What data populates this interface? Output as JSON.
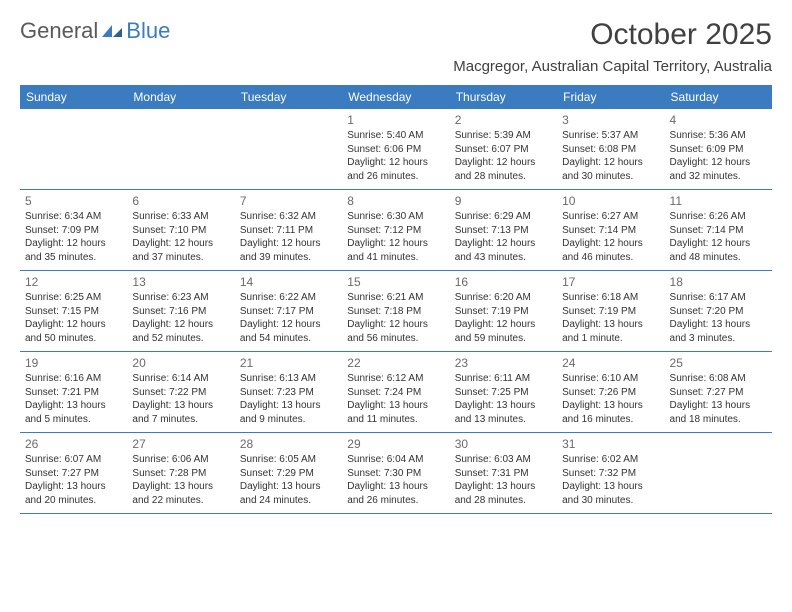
{
  "logo": {
    "text1": "General",
    "text2": "Blue"
  },
  "colors": {
    "brand": "#3b7bbf",
    "header_bg": "#3b7bbf",
    "header_text": "#ffffff",
    "week_border": "#3b7bbf",
    "logo_gray": "#5a5a5a",
    "title_color": "#404040",
    "body_text": "#333333",
    "daynum_color": "#6a6a6a",
    "background": "#ffffff"
  },
  "typography": {
    "title_fontsize": 30,
    "subtitle_fontsize": 15,
    "header_fontsize": 12,
    "daynum_fontsize": 12,
    "daytext_fontsize": 10,
    "logo_fontsize": 22
  },
  "title": "October 2025",
  "subtitle": "Macgregor, Australian Capital Territory, Australia",
  "weekdays": [
    "Sunday",
    "Monday",
    "Tuesday",
    "Wednesday",
    "Thursday",
    "Friday",
    "Saturday"
  ],
  "weeks": [
    [
      {
        "day": "",
        "lines": [
          "",
          "",
          "",
          ""
        ]
      },
      {
        "day": "",
        "lines": [
          "",
          "",
          "",
          ""
        ]
      },
      {
        "day": "",
        "lines": [
          "",
          "",
          "",
          ""
        ]
      },
      {
        "day": "1",
        "lines": [
          "Sunrise: 5:40 AM",
          "Sunset: 6:06 PM",
          "Daylight: 12 hours",
          "and 26 minutes."
        ]
      },
      {
        "day": "2",
        "lines": [
          "Sunrise: 5:39 AM",
          "Sunset: 6:07 PM",
          "Daylight: 12 hours",
          "and 28 minutes."
        ]
      },
      {
        "day": "3",
        "lines": [
          "Sunrise: 5:37 AM",
          "Sunset: 6:08 PM",
          "Daylight: 12 hours",
          "and 30 minutes."
        ]
      },
      {
        "day": "4",
        "lines": [
          "Sunrise: 5:36 AM",
          "Sunset: 6:09 PM",
          "Daylight: 12 hours",
          "and 32 minutes."
        ]
      }
    ],
    [
      {
        "day": "5",
        "lines": [
          "Sunrise: 6:34 AM",
          "Sunset: 7:09 PM",
          "Daylight: 12 hours",
          "and 35 minutes."
        ]
      },
      {
        "day": "6",
        "lines": [
          "Sunrise: 6:33 AM",
          "Sunset: 7:10 PM",
          "Daylight: 12 hours",
          "and 37 minutes."
        ]
      },
      {
        "day": "7",
        "lines": [
          "Sunrise: 6:32 AM",
          "Sunset: 7:11 PM",
          "Daylight: 12 hours",
          "and 39 minutes."
        ]
      },
      {
        "day": "8",
        "lines": [
          "Sunrise: 6:30 AM",
          "Sunset: 7:12 PM",
          "Daylight: 12 hours",
          "and 41 minutes."
        ]
      },
      {
        "day": "9",
        "lines": [
          "Sunrise: 6:29 AM",
          "Sunset: 7:13 PM",
          "Daylight: 12 hours",
          "and 43 minutes."
        ]
      },
      {
        "day": "10",
        "lines": [
          "Sunrise: 6:27 AM",
          "Sunset: 7:14 PM",
          "Daylight: 12 hours",
          "and 46 minutes."
        ]
      },
      {
        "day": "11",
        "lines": [
          "Sunrise: 6:26 AM",
          "Sunset: 7:14 PM",
          "Daylight: 12 hours",
          "and 48 minutes."
        ]
      }
    ],
    [
      {
        "day": "12",
        "lines": [
          "Sunrise: 6:25 AM",
          "Sunset: 7:15 PM",
          "Daylight: 12 hours",
          "and 50 minutes."
        ]
      },
      {
        "day": "13",
        "lines": [
          "Sunrise: 6:23 AM",
          "Sunset: 7:16 PM",
          "Daylight: 12 hours",
          "and 52 minutes."
        ]
      },
      {
        "day": "14",
        "lines": [
          "Sunrise: 6:22 AM",
          "Sunset: 7:17 PM",
          "Daylight: 12 hours",
          "and 54 minutes."
        ]
      },
      {
        "day": "15",
        "lines": [
          "Sunrise: 6:21 AM",
          "Sunset: 7:18 PM",
          "Daylight: 12 hours",
          "and 56 minutes."
        ]
      },
      {
        "day": "16",
        "lines": [
          "Sunrise: 6:20 AM",
          "Sunset: 7:19 PM",
          "Daylight: 12 hours",
          "and 59 minutes."
        ]
      },
      {
        "day": "17",
        "lines": [
          "Sunrise: 6:18 AM",
          "Sunset: 7:19 PM",
          "Daylight: 13 hours",
          "and 1 minute."
        ]
      },
      {
        "day": "18",
        "lines": [
          "Sunrise: 6:17 AM",
          "Sunset: 7:20 PM",
          "Daylight: 13 hours",
          "and 3 minutes."
        ]
      }
    ],
    [
      {
        "day": "19",
        "lines": [
          "Sunrise: 6:16 AM",
          "Sunset: 7:21 PM",
          "Daylight: 13 hours",
          "and 5 minutes."
        ]
      },
      {
        "day": "20",
        "lines": [
          "Sunrise: 6:14 AM",
          "Sunset: 7:22 PM",
          "Daylight: 13 hours",
          "and 7 minutes."
        ]
      },
      {
        "day": "21",
        "lines": [
          "Sunrise: 6:13 AM",
          "Sunset: 7:23 PM",
          "Daylight: 13 hours",
          "and 9 minutes."
        ]
      },
      {
        "day": "22",
        "lines": [
          "Sunrise: 6:12 AM",
          "Sunset: 7:24 PM",
          "Daylight: 13 hours",
          "and 11 minutes."
        ]
      },
      {
        "day": "23",
        "lines": [
          "Sunrise: 6:11 AM",
          "Sunset: 7:25 PM",
          "Daylight: 13 hours",
          "and 13 minutes."
        ]
      },
      {
        "day": "24",
        "lines": [
          "Sunrise: 6:10 AM",
          "Sunset: 7:26 PM",
          "Daylight: 13 hours",
          "and 16 minutes."
        ]
      },
      {
        "day": "25",
        "lines": [
          "Sunrise: 6:08 AM",
          "Sunset: 7:27 PM",
          "Daylight: 13 hours",
          "and 18 minutes."
        ]
      }
    ],
    [
      {
        "day": "26",
        "lines": [
          "Sunrise: 6:07 AM",
          "Sunset: 7:27 PM",
          "Daylight: 13 hours",
          "and 20 minutes."
        ]
      },
      {
        "day": "27",
        "lines": [
          "Sunrise: 6:06 AM",
          "Sunset: 7:28 PM",
          "Daylight: 13 hours",
          "and 22 minutes."
        ]
      },
      {
        "day": "28",
        "lines": [
          "Sunrise: 6:05 AM",
          "Sunset: 7:29 PM",
          "Daylight: 13 hours",
          "and 24 minutes."
        ]
      },
      {
        "day": "29",
        "lines": [
          "Sunrise: 6:04 AM",
          "Sunset: 7:30 PM",
          "Daylight: 13 hours",
          "and 26 minutes."
        ]
      },
      {
        "day": "30",
        "lines": [
          "Sunrise: 6:03 AM",
          "Sunset: 7:31 PM",
          "Daylight: 13 hours",
          "and 28 minutes."
        ]
      },
      {
        "day": "31",
        "lines": [
          "Sunrise: 6:02 AM",
          "Sunset: 7:32 PM",
          "Daylight: 13 hours",
          "and 30 minutes."
        ]
      },
      {
        "day": "",
        "lines": [
          "",
          "",
          "",
          ""
        ]
      }
    ]
  ]
}
